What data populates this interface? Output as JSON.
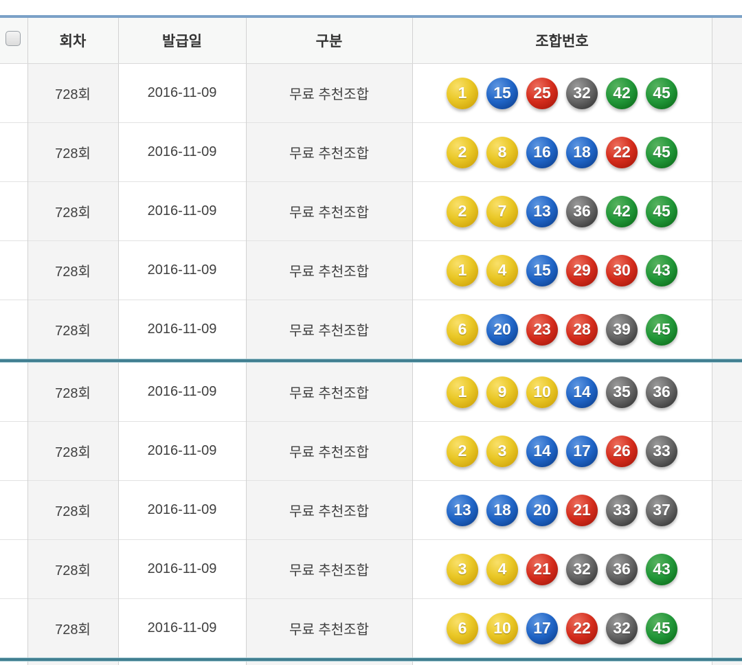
{
  "header": {
    "round": "회차",
    "issue_date": "발급일",
    "category": "구분",
    "combination": "조합번호"
  },
  "rows": [
    {
      "round": "728회",
      "issue_date": "2016-11-09",
      "category": "무료 추천조합",
      "numbers": [
        1,
        15,
        25,
        32,
        42,
        45
      ]
    },
    {
      "round": "728회",
      "issue_date": "2016-11-09",
      "category": "무료 추천조합",
      "numbers": [
        2,
        8,
        16,
        18,
        22,
        45
      ]
    },
    {
      "round": "728회",
      "issue_date": "2016-11-09",
      "category": "무료 추천조합",
      "numbers": [
        2,
        7,
        13,
        36,
        42,
        45
      ]
    },
    {
      "round": "728회",
      "issue_date": "2016-11-09",
      "category": "무료 추천조합",
      "numbers": [
        1,
        4,
        15,
        29,
        30,
        43
      ]
    },
    {
      "round": "728회",
      "issue_date": "2016-11-09",
      "category": "무료 추천조합",
      "numbers": [
        6,
        20,
        23,
        28,
        39,
        45
      ]
    },
    {
      "round": "728회",
      "issue_date": "2016-11-09",
      "category": "무료 추천조합",
      "numbers": [
        1,
        9,
        10,
        14,
        35,
        36
      ]
    },
    {
      "round": "728회",
      "issue_date": "2016-11-09",
      "category": "무료 추천조합",
      "numbers": [
        2,
        3,
        14,
        17,
        26,
        33
      ]
    },
    {
      "round": "728회",
      "issue_date": "2016-11-09",
      "category": "무료 추천조합",
      "numbers": [
        13,
        18,
        20,
        21,
        33,
        37
      ]
    },
    {
      "round": "728회",
      "issue_date": "2016-11-09",
      "category": "무료 추천조합",
      "numbers": [
        3,
        4,
        21,
        32,
        36,
        43
      ]
    },
    {
      "round": "728회",
      "issue_date": "2016-11-09",
      "category": "무료 추천조합",
      "numbers": [
        6,
        10,
        17,
        22,
        32,
        45
      ]
    }
  ],
  "group_size": 5,
  "ball_color_ranges": [
    {
      "range": "1-10",
      "name": "yellow",
      "main": "#eac827"
    },
    {
      "range": "11-20",
      "name": "blue",
      "main": "#1f64c6"
    },
    {
      "range": "21-30",
      "name": "red",
      "main": "#d42c1c"
    },
    {
      "range": "31-40",
      "name": "gray",
      "main": "#646464"
    },
    {
      "range": "41-45",
      "name": "green",
      "main": "#219638"
    }
  ],
  "accent_colors": {
    "top_line": "#7ba1c7",
    "group_separator": "#417f91",
    "header_bg": "#f7f8f7",
    "shaded_column_bg": "#f4f4f4"
  }
}
